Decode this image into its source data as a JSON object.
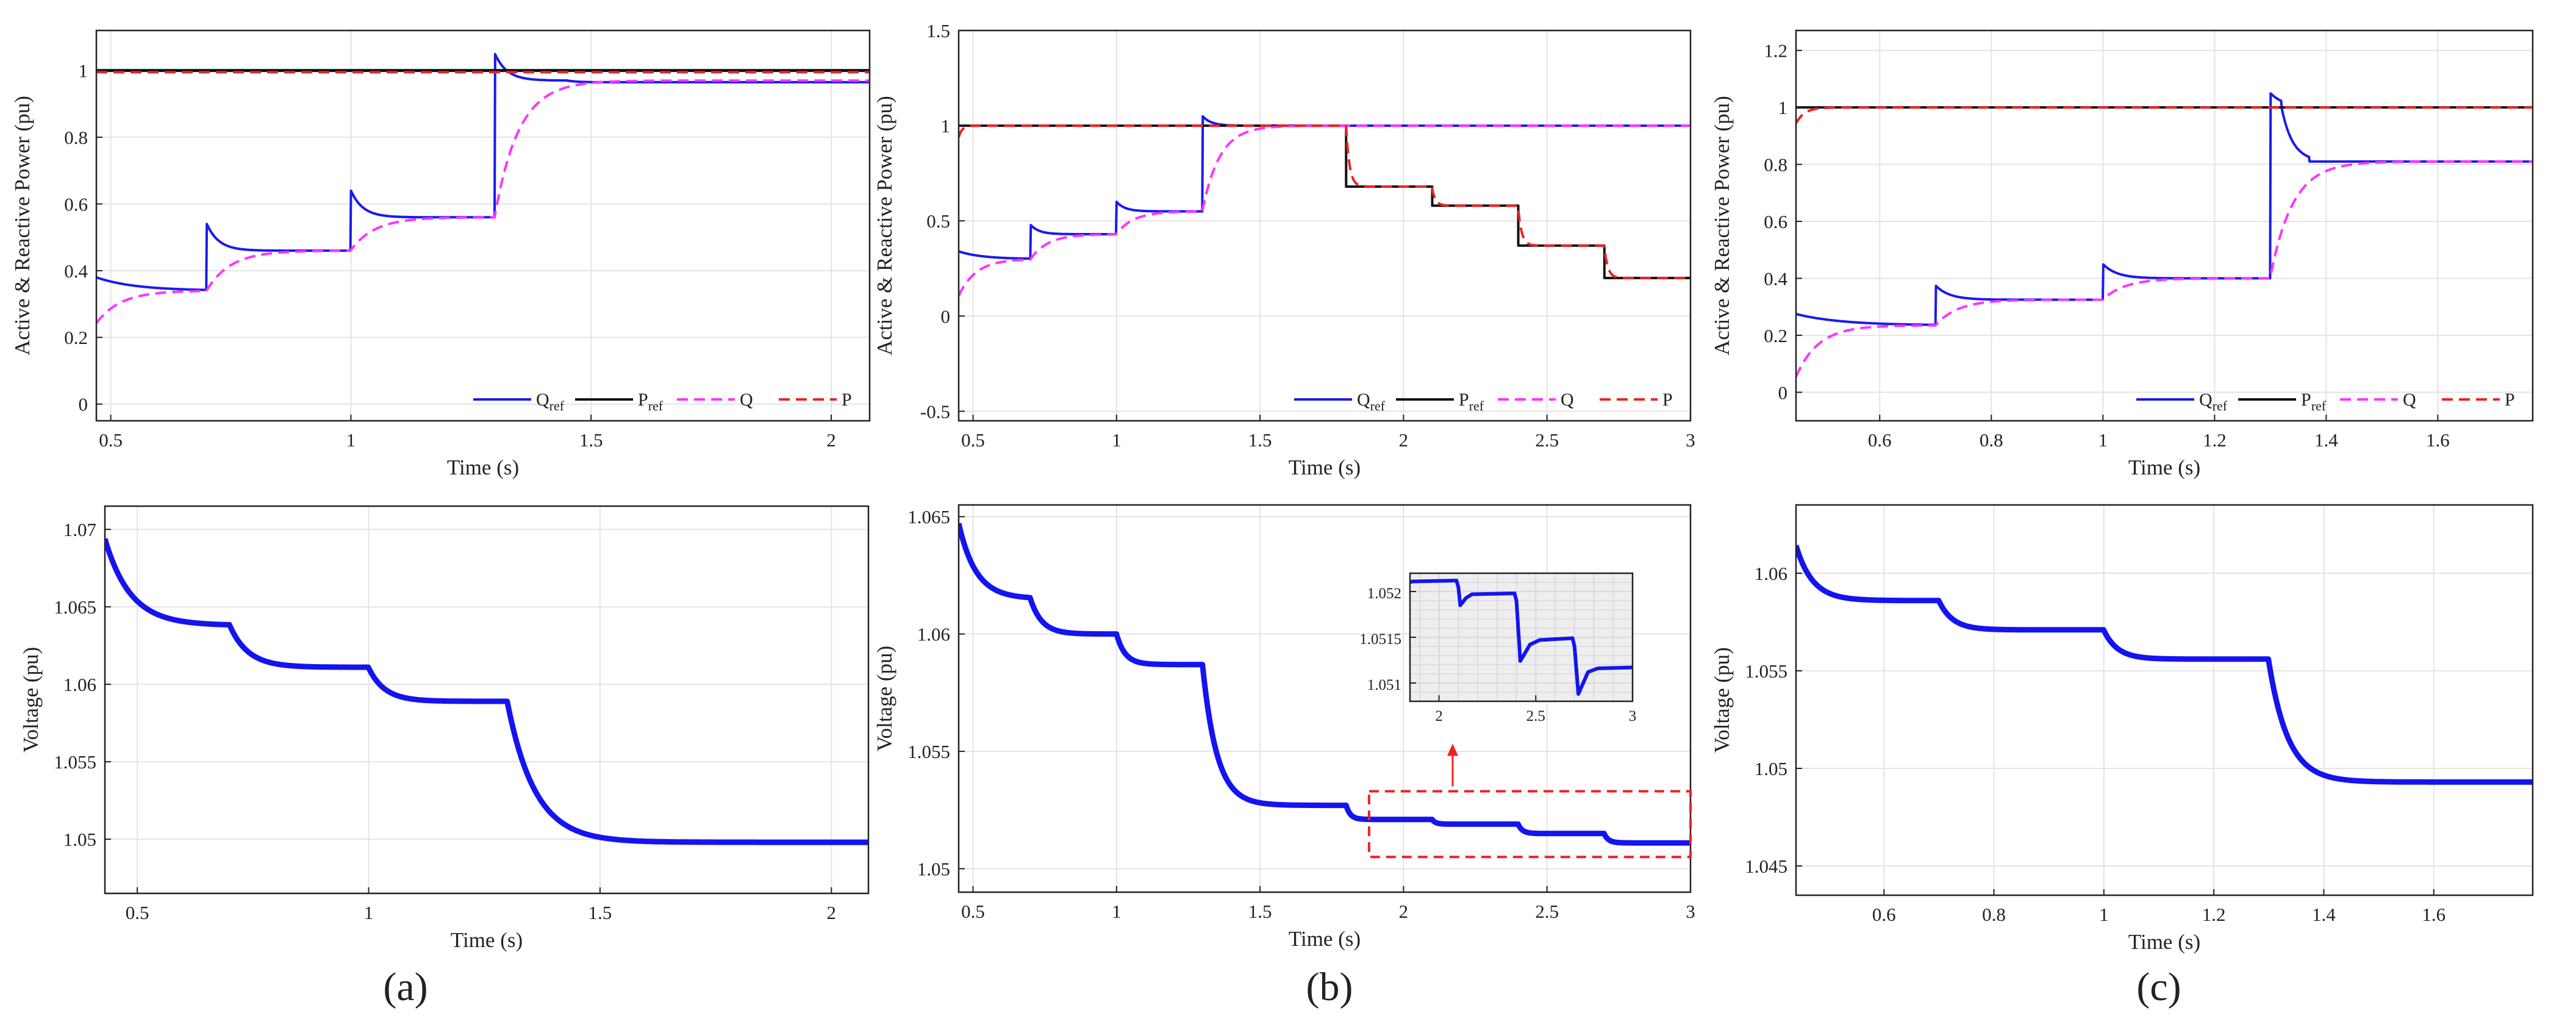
{
  "figure": {
    "captions": [
      "(a)",
      "(b)",
      "(c)"
    ]
  },
  "colors": {
    "q_ref": "#1a1aee",
    "p_ref": "#111111",
    "q": "#ff33ff",
    "p": "#ee2222",
    "voltage": "#1414f0",
    "grid": "#e3e3e3",
    "zoom_box": "#ee2222"
  },
  "chart_data": [
    {
      "id": "a-power",
      "type": "line",
      "panel": "a",
      "xlabel": "Time (s)",
      "ylabel": "Active & Reactive Power (pu)",
      "xlim": [
        0.47,
        2.08
      ],
      "ylim": [
        -0.05,
        1.12
      ],
      "xticks": [
        0.5,
        1,
        1.5,
        2
      ],
      "yticks": [
        0,
        0.2,
        0.4,
        0.6,
        0.8,
        1
      ],
      "xtick_labels": [
        "0.5",
        "1",
        "1.5",
        "2"
      ],
      "ytick_labels": [
        "0",
        "0.2",
        "0.4",
        "0.6",
        "0.8",
        "1"
      ],
      "legend": [
        "Q_ref",
        "P_ref",
        "Q",
        "P"
      ],
      "series": [
        {
          "name": "Q_ref",
          "kind": "qref",
          "style": "solid",
          "width": 4,
          "color": "#1a1aee",
          "base": 0.34,
          "steps": [
            [
              0.7,
              0.46
            ],
            [
              1.0,
              0.56
            ],
            [
              1.3,
              0.97
            ]
          ],
          "spike": 0.08,
          "spike_tau": 0.025,
          "tail": [
            [
              1.5,
              0.965
            ]
          ]
        },
        {
          "name": "P_ref",
          "kind": "const",
          "style": "solid",
          "width": 5,
          "color": "#111111",
          "value": 1.0
        },
        {
          "name": "Q",
          "kind": "lag",
          "style": "dashed",
          "width": 4,
          "color": "#ff33ff",
          "start": 0.24,
          "base": 0.34,
          "tau": 0.05,
          "steps": [
            [
              0.7,
              0.46
            ],
            [
              1.0,
              0.56
            ],
            [
              1.3,
              0.97
            ]
          ]
        },
        {
          "name": "P",
          "kind": "const",
          "style": "dashed",
          "width": 4,
          "color": "#ee2222",
          "value": 0.995
        }
      ]
    },
    {
      "id": "b-power",
      "type": "line",
      "panel": "b",
      "xlabel": "Time (s)",
      "ylabel": "Active & Reactive Power (pu)",
      "xlim": [
        0.45,
        3.0
      ],
      "ylim": [
        -0.55,
        1.5
      ],
      "xticks": [
        0.5,
        1,
        1.5,
        2,
        2.5,
        3
      ],
      "yticks": [
        -0.5,
        0,
        0.5,
        1,
        1.5
      ],
      "xtick_labels": [
        "0.5",
        "1",
        "1.5",
        "2",
        "2.5",
        "3"
      ],
      "ytick_labels": [
        "-0.5",
        "0",
        "0.5",
        "1",
        "1.5"
      ],
      "legend": [
        "Q_ref",
        "P_ref",
        "Q",
        "P"
      ],
      "series": [
        {
          "name": "Q_ref",
          "kind": "qref",
          "style": "solid",
          "width": 4,
          "color": "#1a1aee",
          "base": 0.3,
          "steps": [
            [
              0.7,
              0.43
            ],
            [
              1.0,
              0.55
            ],
            [
              1.3,
              1.0
            ]
          ],
          "spike": 0.05,
          "spike_tau": 0.03,
          "tail": []
        },
        {
          "name": "P_ref",
          "kind": "step",
          "style": "solid",
          "width": 4,
          "color": "#111111",
          "base": 1.0,
          "steps": [
            [
              1.8,
              0.68
            ],
            [
              2.1,
              0.58
            ],
            [
              2.4,
              0.37
            ],
            [
              2.7,
              0.2
            ]
          ]
        },
        {
          "name": "Q",
          "kind": "lag",
          "style": "dashed",
          "width": 4,
          "color": "#ff33ff",
          "start": 0.1,
          "base": 0.3,
          "tau": 0.06,
          "steps": [
            [
              0.7,
              0.43
            ],
            [
              1.0,
              0.55
            ],
            [
              1.3,
              1.0
            ]
          ]
        },
        {
          "name": "P",
          "kind": "plag",
          "style": "dashed",
          "width": 4,
          "color": "#ee2222",
          "start": 0.93,
          "base": 1.0,
          "tau": 0.012,
          "steps": [
            [
              1.8,
              0.68
            ],
            [
              2.1,
              0.58
            ],
            [
              2.4,
              0.37
            ],
            [
              2.7,
              0.2
            ]
          ]
        }
      ]
    },
    {
      "id": "c-power",
      "type": "line",
      "panel": "c",
      "xlabel": "Time (s)",
      "ylabel": "Active & Reactive Power (pu)",
      "xlim": [
        0.45,
        1.77
      ],
      "ylim": [
        -0.1,
        1.27
      ],
      "xticks": [
        0.6,
        0.8,
        1.0,
        1.2,
        1.4,
        1.6
      ],
      "yticks": [
        0,
        0.2,
        0.4,
        0.6,
        0.8,
        1,
        1.2
      ],
      "xtick_labels": [
        "0.6",
        "0.8",
        "1",
        "1.2",
        "1.4",
        "1.6"
      ],
      "ytick_labels": [
        "0",
        "0.2",
        "0.4",
        "0.6",
        "0.8",
        "1",
        "1.2"
      ],
      "legend": [
        "Q_ref",
        "P_ref",
        "Q",
        "P"
      ],
      "series": [
        {
          "name": "Q_ref",
          "kind": "qref",
          "style": "solid",
          "width": 4,
          "color": "#1a1aee",
          "base": 0.235,
          "steps": [
            [
              0.7,
              0.325
            ],
            [
              1.0,
              0.4
            ],
            [
              1.3,
              1.0
            ]
          ],
          "spike": 0.05,
          "spike_tau": 0.025,
          "tail": [
            [
              1.37,
              0.81
            ]
          ]
        },
        {
          "name": "P_ref",
          "kind": "const",
          "style": "solid",
          "width": 4,
          "color": "#111111",
          "value": 1.0
        },
        {
          "name": "Q",
          "kind": "lag",
          "style": "dashed",
          "width": 4,
          "color": "#ff33ff",
          "start": 0.05,
          "base": 0.235,
          "tau": 0.04,
          "steps": [
            [
              0.7,
              0.325
            ],
            [
              1.0,
              0.4
            ],
            [
              1.3,
              0.81
            ]
          ]
        },
        {
          "name": "P",
          "kind": "plag",
          "style": "dashed",
          "width": 4,
          "color": "#ee2222",
          "start": 0.94,
          "base": 1.0,
          "tau": 0.015,
          "steps": []
        }
      ]
    },
    {
      "id": "a-voltage",
      "type": "line",
      "panel": "a",
      "xlabel": "Time (s)",
      "ylabel": "Voltage (pu)",
      "xlim": [
        0.43,
        2.08
      ],
      "ylim": [
        1.0465,
        1.0715
      ],
      "xticks": [
        0.5,
        1,
        1.5,
        2
      ],
      "yticks": [
        1.05,
        1.055,
        1.06,
        1.065,
        1.07
      ],
      "xtick_labels": [
        "0.5",
        "1",
        "1.5",
        "2"
      ],
      "ytick_labels": [
        "1.05",
        "1.055",
        "1.06",
        "1.065",
        "1.07"
      ],
      "series": [
        {
          "name": "Voltage",
          "kind": "volt",
          "style": "solid",
          "width": 9,
          "color": "#1414f0",
          "start": 1.0695,
          "base": 1.0638,
          "tau": 0.055,
          "steps": [
            [
              0.7,
              1.0611,
              0.04
            ],
            [
              1.0,
              1.0589,
              0.035
            ],
            [
              1.3,
              1.0498,
              0.06
            ]
          ]
        }
      ]
    },
    {
      "id": "b-voltage",
      "type": "line",
      "panel": "b",
      "xlabel": "Time (s)",
      "ylabel": "Voltage (pu)",
      "xlim": [
        0.45,
        3.0
      ],
      "ylim": [
        1.049,
        1.0655
      ],
      "xticks": [
        0.5,
        1,
        1.5,
        2,
        2.5,
        3
      ],
      "yticks": [
        1.05,
        1.055,
        1.06,
        1.065
      ],
      "xtick_labels": [
        "0.5",
        "1",
        "1.5",
        "2",
        "2.5",
        "3"
      ],
      "ytick_labels": [
        "1.05",
        "1.055",
        "1.06",
        "1.065"
      ],
      "series": [
        {
          "name": "Voltage",
          "kind": "volt",
          "style": "solid",
          "width": 9,
          "color": "#1414f0",
          "start": 1.0648,
          "base": 1.0615,
          "tau": 0.06,
          "steps": [
            [
              0.7,
              1.06,
              0.04
            ],
            [
              1.0,
              1.0587,
              0.03
            ],
            [
              1.3,
              1.0527,
              0.05
            ],
            [
              1.8,
              1.0521,
              0.015
            ],
            [
              2.1,
              1.0519,
              0.012
            ],
            [
              2.4,
              1.0515,
              0.015
            ],
            [
              2.7,
              1.0511,
              0.015
            ]
          ]
        }
      ],
      "zoom_box": {
        "x": [
          1.88,
          3.0
        ],
        "y": [
          1.0505,
          1.0533
        ]
      }
    },
    {
      "id": "b-voltage-inset",
      "type": "line",
      "panel": "b-inset",
      "xlabel": "",
      "ylabel": "",
      "xlim": [
        1.85,
        3.0
      ],
      "ylim": [
        1.0508,
        1.0522
      ],
      "xticks": [
        2,
        2.5,
        3
      ],
      "yticks": [
        1.051,
        1.0515,
        1.052
      ],
      "xtick_labels": [
        "2",
        "2.5",
        "3"
      ],
      "ytick_labels": [
        "1.051",
        "1.0515",
        "1.052"
      ],
      "series": [
        {
          "name": "Voltage zoom",
          "kind": "inset",
          "style": "solid",
          "width": 6,
          "color": "#1414f0",
          "points": [
            [
              1.85,
              1.0521
            ],
            [
              1.86,
              1.05211
            ],
            [
              2.09,
              1.05212
            ],
            [
              2.1,
              1.05205
            ],
            [
              2.11,
              1.05185
            ],
            [
              2.14,
              1.05193
            ],
            [
              2.17,
              1.05197
            ],
            [
              2.39,
              1.05198
            ],
            [
              2.4,
              1.0519
            ],
            [
              2.42,
              1.05124
            ],
            [
              2.47,
              1.05142
            ],
            [
              2.52,
              1.05147
            ],
            [
              2.69,
              1.05149
            ],
            [
              2.7,
              1.0514
            ],
            [
              2.72,
              1.05088
            ],
            [
              2.77,
              1.05112
            ],
            [
              2.82,
              1.05116
            ],
            [
              3.0,
              1.05117
            ]
          ]
        }
      ]
    },
    {
      "id": "c-voltage",
      "type": "line",
      "panel": "c",
      "xlabel": "Time (s)",
      "ylabel": "Voltage (pu)",
      "xlim": [
        0.44,
        1.78
      ],
      "ylim": [
        1.0435,
        1.0635
      ],
      "xticks": [
        0.6,
        0.8,
        1.0,
        1.2,
        1.4,
        1.6
      ],
      "yticks": [
        1.045,
        1.05,
        1.055,
        1.06
      ],
      "xtick_labels": [
        "0.6",
        "0.8",
        "1",
        "1.2",
        "1.4",
        "1.6"
      ],
      "ytick_labels": [
        "1.045",
        "1.05",
        "1.055",
        "1.06"
      ],
      "series": [
        {
          "name": "Voltage",
          "kind": "volt",
          "style": "solid",
          "width": 9,
          "color": "#1414f0",
          "start": 1.0615,
          "base": 1.0586,
          "tau": 0.03,
          "steps": [
            [
              0.7,
              1.0571,
              0.025
            ],
            [
              1.0,
              1.0556,
              0.025
            ],
            [
              1.3,
              1.0493,
              0.035
            ]
          ]
        }
      ]
    }
  ]
}
